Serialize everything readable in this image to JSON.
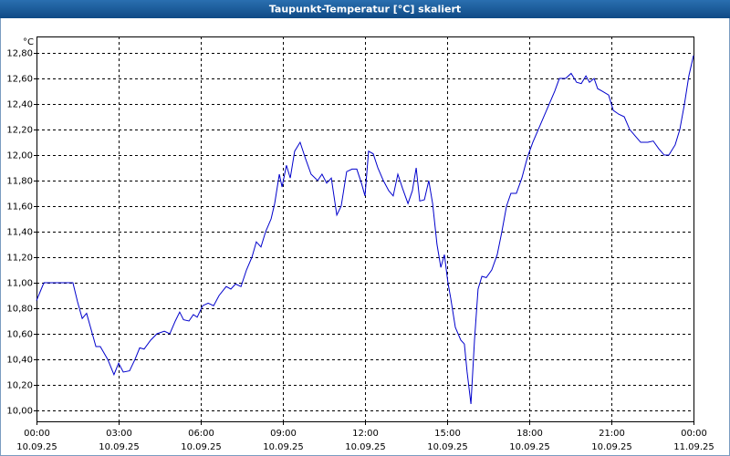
{
  "chart_data": {
    "type": "line",
    "title": "Taupunkt-Temperatur [°C] skaliert",
    "y_unit": "°C",
    "x": [
      0,
      0.27,
      1.33,
      1.5,
      1.67,
      1.83,
      2,
      2.17,
      2.33,
      2.6,
      2.83,
      3,
      3.17,
      3.4,
      3.6,
      3.77,
      3.93,
      4.17,
      4.4,
      4.67,
      4.87,
      5.07,
      5.23,
      5.37,
      5.57,
      5.73,
      5.87,
      6.07,
      6.27,
      6.47,
      6.67,
      6.93,
      7.1,
      7.27,
      7.47,
      7.67,
      7.87,
      8.03,
      8.2,
      8.37,
      8.57,
      8.7,
      8.87,
      8.97,
      9.13,
      9.27,
      9.43,
      9.63,
      9.83,
      10.03,
      10.27,
      10.43,
      10.6,
      10.77,
      10.97,
      11.13,
      11.33,
      11.53,
      11.7,
      11.87,
      12,
      12.13,
      12.3,
      12.47,
      12.67,
      12.87,
      13.03,
      13.2,
      13.37,
      13.57,
      13.73,
      13.87,
      14,
      14.17,
      14.33,
      14.47,
      14.63,
      14.77,
      14.9,
      15.03,
      15.13,
      15.3,
      15.5,
      15.63,
      15.73,
      15.87,
      16,
      16.13,
      16.27,
      16.43,
      16.63,
      16.83,
      17,
      17.17,
      17.33,
      17.53,
      17.73,
      17.93,
      18.13,
      18.33,
      18.53,
      18.73,
      18.93,
      19.1,
      19.33,
      19.53,
      19.73,
      19.9,
      20.07,
      20.2,
      20.37,
      20.5,
      20.67,
      20.9,
      21.07,
      21.27,
      21.47,
      21.67,
      21.87,
      22.07,
      22.33,
      22.53,
      22.73,
      22.93,
      23.1,
      23.33,
      23.5,
      23.67,
      23.83,
      24
    ],
    "series": [
      {
        "color": "#0000cc",
        "values": [
          10.86,
          11.0,
          11.0,
          10.85,
          10.72,
          10.76,
          10.63,
          10.5,
          10.5,
          10.4,
          10.28,
          10.37,
          10.3,
          10.31,
          10.4,
          10.49,
          10.48,
          10.55,
          10.6,
          10.62,
          10.6,
          10.7,
          10.77,
          10.71,
          10.7,
          10.75,
          10.73,
          10.82,
          10.84,
          10.82,
          10.9,
          10.97,
          10.95,
          10.99,
          10.97,
          11.1,
          11.2,
          11.32,
          11.28,
          11.4,
          11.5,
          11.62,
          11.85,
          11.75,
          11.92,
          11.82,
          12.03,
          12.1,
          11.97,
          11.85,
          11.8,
          11.85,
          11.78,
          11.82,
          11.53,
          11.6,
          11.87,
          11.89,
          11.89,
          11.78,
          11.68,
          12.03,
          12.01,
          11.9,
          11.8,
          11.72,
          11.68,
          11.85,
          11.74,
          11.62,
          11.72,
          11.9,
          11.64,
          11.65,
          11.8,
          11.62,
          11.3,
          11.12,
          11.22,
          11.0,
          10.88,
          10.65,
          10.55,
          10.52,
          10.3,
          10.05,
          10.55,
          10.95,
          11.05,
          11.04,
          11.1,
          11.22,
          11.4,
          11.6,
          11.7,
          11.7,
          11.82,
          11.98,
          12.1,
          12.2,
          12.3,
          12.4,
          12.5,
          12.6,
          12.6,
          12.64,
          12.57,
          12.56,
          12.62,
          12.57,
          12.6,
          12.52,
          12.5,
          12.47,
          12.35,
          12.32,
          12.3,
          12.2,
          12.15,
          12.1,
          12.1,
          12.11,
          12.05,
          12.0,
          12.0,
          12.08,
          12.2,
          12.4,
          12.62,
          12.78
        ]
      }
    ],
    "xlim": [
      0,
      24
    ],
    "xticks": [
      {
        "value": 0,
        "label": "00:00"
      },
      {
        "value": 3,
        "label": "03:00"
      },
      {
        "value": 6,
        "label": "06:00"
      },
      {
        "value": 9,
        "label": "09:00"
      },
      {
        "value": 12,
        "label": "12:00"
      },
      {
        "value": 15,
        "label": "15:00"
      },
      {
        "value": 18,
        "label": "18:00"
      },
      {
        "value": 21,
        "label": "21:00"
      },
      {
        "value": 24,
        "label": "00:00"
      }
    ],
    "xtick_dates": [
      "10.09.25",
      "10.09.25",
      "10.09.25",
      "10.09.25",
      "10.09.25",
      "10.09.25",
      "10.09.25",
      "10.09.25",
      "11.09.25"
    ],
    "ylim": [
      9.914,
      12.929
    ],
    "yticks": [
      {
        "value": 10,
        "label": "10,00"
      },
      {
        "value": 10.2,
        "label": "10,20"
      },
      {
        "value": 10.4,
        "label": "10,40"
      },
      {
        "value": 10.6,
        "label": "10,60"
      },
      {
        "value": 10.8,
        "label": "10,80"
      },
      {
        "value": 11,
        "label": "11,00"
      },
      {
        "value": 11.2,
        "label": "11,20"
      },
      {
        "value": 11.4,
        "label": "11,40"
      },
      {
        "value": 11.6,
        "label": "11,60"
      },
      {
        "value": 11.8,
        "label": "11,80"
      },
      {
        "value": 12,
        "label": "12,00"
      },
      {
        "value": 12.2,
        "label": "12,20"
      },
      {
        "value": 12.4,
        "label": "12,40"
      },
      {
        "value": 12.6,
        "label": "12,60"
      },
      {
        "value": 12.8,
        "label": "12,80"
      }
    ],
    "grid": true
  }
}
